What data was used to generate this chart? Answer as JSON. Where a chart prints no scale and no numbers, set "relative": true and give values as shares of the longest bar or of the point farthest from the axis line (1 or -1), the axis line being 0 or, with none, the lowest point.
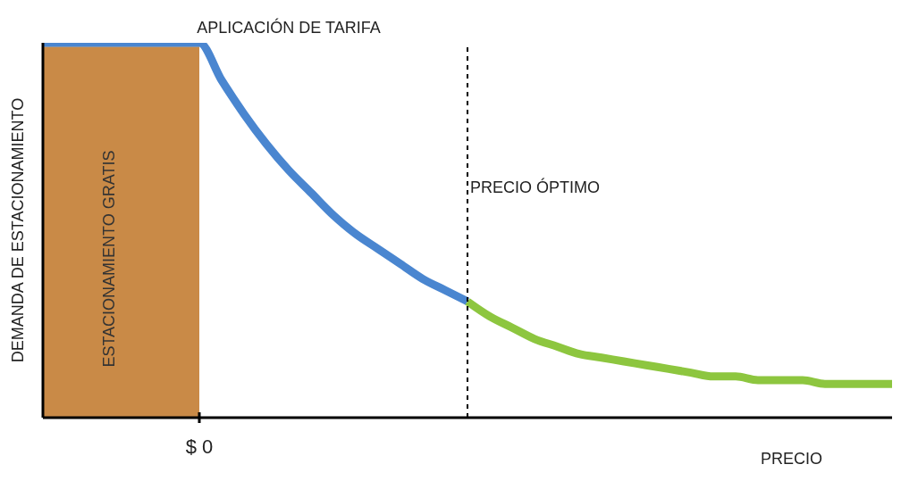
{
  "chart_data": {
    "type": "line",
    "relative": true,
    "xlabel": "PRECIO",
    "ylabel": "DEMANDA DE ESTACIONAMIENTO",
    "categories": [
      null,
      null,
      null,
      null,
      null,
      null,
      null,
      null,
      null,
      null,
      null,
      null,
      null,
      null,
      null,
      null,
      null,
      null,
      null,
      null,
      null,
      null,
      null,
      null,
      null,
      null,
      null,
      null,
      null,
      null,
      null,
      null,
      null,
      null,
      null,
      null,
      null,
      null,
      null
    ],
    "series": [
      {
        "type": "area",
        "name": "ESTACIONAMIENTO GRATIS",
        "color": "#c98a47",
        "values": [
          0.99,
          0.99,
          0.99,
          0.99,
          0.99,
          0.99,
          0.99,
          0.99,
          null,
          null,
          null,
          null,
          null,
          null,
          null,
          null,
          null,
          null,
          null,
          null,
          null,
          null,
          null,
          null,
          null,
          null,
          null,
          null,
          null,
          null,
          null,
          null,
          null,
          null,
          null,
          null,
          null,
          null,
          null
        ]
      },
      {
        "color": "#4a86d0",
        "values": [
          1,
          1,
          1,
          1,
          1,
          1,
          1,
          1,
          0.9,
          0.81,
          0.73,
          0.66,
          0.6,
          0.54,
          0.49,
          0.45,
          0.41,
          0.37,
          0.34,
          0.31,
          null,
          null,
          null,
          null,
          null,
          null,
          null,
          null,
          null,
          null,
          null,
          null,
          null,
          null,
          null,
          null,
          null,
          null,
          null
        ]
      },
      {
        "color": "#8dc63f",
        "values": [
          null,
          null,
          null,
          null,
          null,
          null,
          null,
          null,
          null,
          null,
          null,
          null,
          null,
          null,
          null,
          null,
          null,
          null,
          null,
          0.31,
          0.27,
          0.24,
          0.21,
          0.19,
          0.17,
          0.16,
          0.15,
          0.14,
          0.13,
          0.12,
          0.11,
          0.11,
          0.1,
          0.1,
          0.1,
          0.09,
          0.09,
          0.09,
          0.09
        ]
      }
    ],
    "ref_lines": [
      {
        "axis": "x",
        "label": "PRECIO ÓPTIMO",
        "line_style": "dashed"
      }
    ],
    "annotations": [
      "APLICACIÓN DE TARIFA",
      "$ 0"
    ],
    "legend": false,
    "grid": false,
    "marker": "none"
  }
}
